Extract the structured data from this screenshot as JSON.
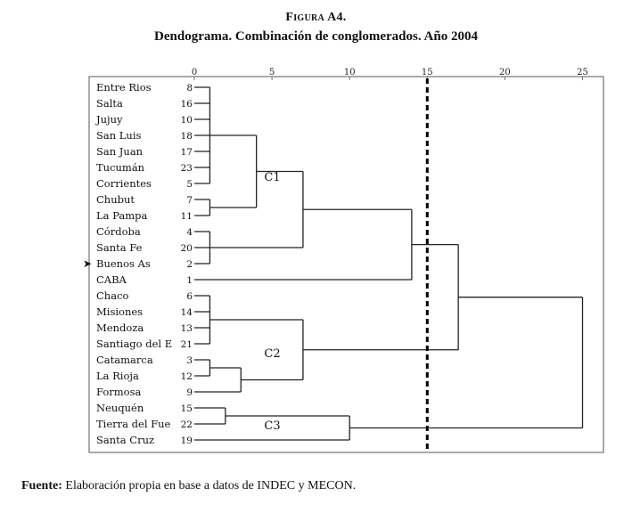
{
  "figure": {
    "label": "Figura A4.",
    "title": "Dendograma. Combinación de conglomerados. Año 2004"
  },
  "chart_data": {
    "type": "dendrogram",
    "axis": {
      "ticks": [
        0,
        5,
        10,
        15,
        20,
        25
      ],
      "range": [
        0,
        25
      ],
      "position": "top"
    },
    "cut_line": 15,
    "selected_marker": "Buenos As",
    "leaves": [
      {
        "name": "Entre Rios",
        "id": "8"
      },
      {
        "name": "Salta",
        "id": "16"
      },
      {
        "name": "Jujuy",
        "id": "10"
      },
      {
        "name": "San Luis",
        "id": "18"
      },
      {
        "name": "San Juan",
        "id": "17"
      },
      {
        "name": "Tucumán",
        "id": "23"
      },
      {
        "name": "Corrientes",
        "id": "5"
      },
      {
        "name": "Chubut",
        "id": "7"
      },
      {
        "name": "La Pampa",
        "id": "11"
      },
      {
        "name": "Córdoba",
        "id": "4"
      },
      {
        "name": "Santa Fe",
        "id": "20"
      },
      {
        "name": "Buenos As",
        "id": "2"
      },
      {
        "name": "CABA",
        "id": "1"
      },
      {
        "name": "Chaco",
        "id": "6"
      },
      {
        "name": "Misiones",
        "id": "14"
      },
      {
        "name": "Mendoza",
        "id": "13"
      },
      {
        "name": "Santiago del E",
        "id": "21"
      },
      {
        "name": "Catamarca",
        "id": "3"
      },
      {
        "name": "La Rioja",
        "id": "12"
      },
      {
        "name": "Formosa",
        "id": "9"
      },
      {
        "name": "Neuquén",
        "id": "15"
      },
      {
        "name": "Tierra del Fue",
        "id": "22"
      },
      {
        "name": "Santa Cruz",
        "id": "19"
      }
    ],
    "merges": [
      {
        "members": [
          0,
          1,
          2,
          3,
          4,
          5,
          6
        ],
        "height": 1
      },
      {
        "members": [
          7,
          8
        ],
        "height": 1
      },
      {
        "members": [
          9,
          10,
          11
        ],
        "height": 1
      },
      {
        "members": [
          13,
          14,
          15,
          16
        ],
        "height": 1
      },
      {
        "members": [
          17,
          18
        ],
        "height": 1
      },
      {
        "members": [
          20,
          21
        ],
        "height": 2
      },
      {
        "children": [
          "c0",
          "c1"
        ],
        "height": 4
      },
      {
        "children": [
          "c4",
          19
        ],
        "height": 3
      },
      {
        "children": [
          "c6",
          "c2"
        ],
        "height": 7
      },
      {
        "children": [
          "c3",
          "c7"
        ],
        "height": 7
      },
      {
        "children": [
          "c5",
          22
        ],
        "height": 10
      },
      {
        "children": [
          "c8",
          12
        ],
        "height": 14
      },
      {
        "children": [
          "c11",
          "c9"
        ],
        "height": 17
      },
      {
        "children": [
          "c12",
          "c10"
        ],
        "height": 25
      }
    ],
    "cluster_labels": [
      {
        "text": "C1",
        "leaf_pos": 5.6,
        "value": 4.5
      },
      {
        "text": "C2",
        "leaf_pos": 16.6,
        "value": 4.5
      },
      {
        "text": "C3",
        "leaf_pos": 21.1,
        "value": 4.5
      }
    ]
  },
  "source": {
    "label": "Fuente:",
    "text": " Elaboración propia en base a datos de INDEC y MECON."
  }
}
